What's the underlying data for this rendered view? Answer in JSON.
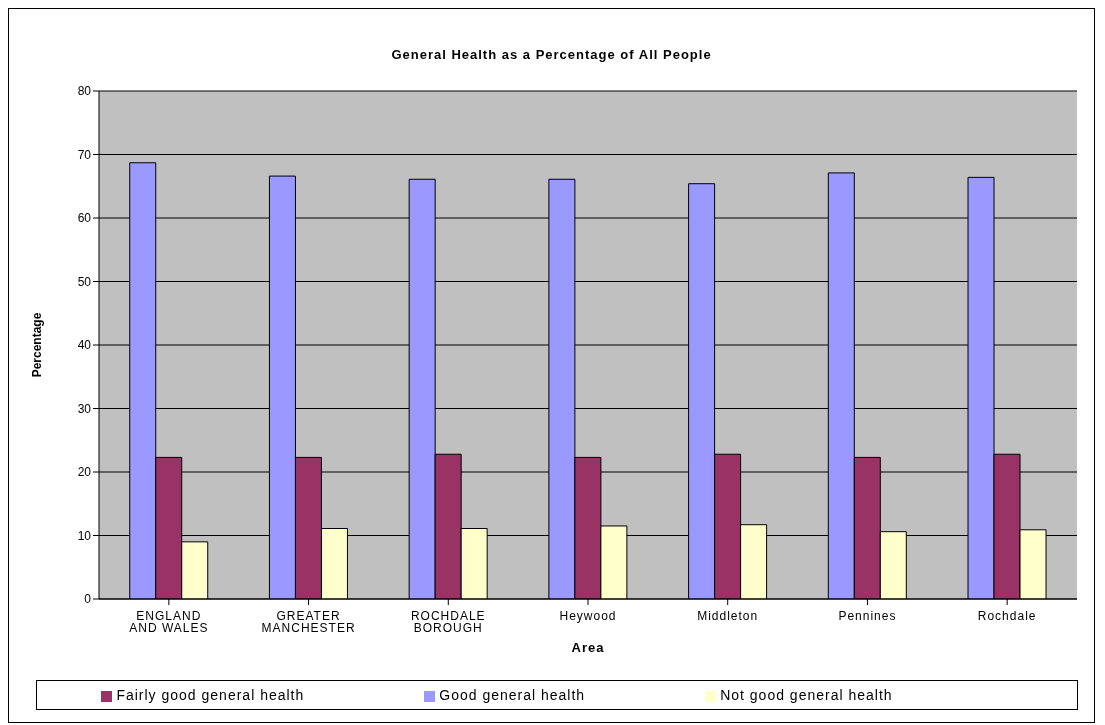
{
  "chart_data": {
    "type": "bar",
    "title": "General Health as a Percentage of All People",
    "xlabel": "Area",
    "ylabel": "Percentage",
    "categories": [
      "ENGLAND AND WALES",
      "GREATER MANCHESTER",
      "ROCHDALE BOROUGH",
      "Heywood",
      "Middleton",
      "Pennines",
      "Rochdale"
    ],
    "series": [
      {
        "name": "Good general health",
        "color": "#9999ff",
        "values": [
          68.7,
          66.6,
          66.1,
          66.1,
          65.4,
          67.1,
          66.4
        ]
      },
      {
        "name": "Fairly good general health",
        "color": "#993366",
        "values": [
          22.3,
          22.3,
          22.8,
          22.3,
          22.8,
          22.3,
          22.8
        ]
      },
      {
        "name": "Not good general health",
        "color": "#ffffcc",
        "values": [
          9.0,
          11.1,
          11.1,
          11.5,
          11.7,
          10.6,
          10.9
        ]
      }
    ],
    "ylim": [
      0,
      80
    ],
    "yticks": [
      0,
      10,
      20,
      30,
      40,
      50,
      60,
      70,
      80
    ],
    "grid": "y",
    "legend": "bottom"
  }
}
